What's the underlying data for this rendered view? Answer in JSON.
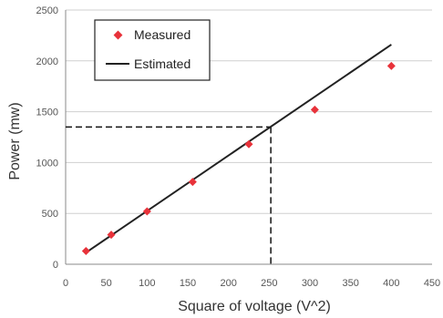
{
  "chart_data": {
    "type": "scatter",
    "title": "",
    "xlabel": "Square of voltage (V^2)",
    "ylabel": "Power (mw)",
    "xlim": [
      0,
      450
    ],
    "ylim": [
      0,
      2500
    ],
    "xticks": [
      0,
      50,
      100,
      150,
      200,
      250,
      300,
      350,
      400,
      450
    ],
    "yticks": [
      0,
      500,
      1000,
      1500,
      2000,
      2500
    ],
    "grid": "horizontal",
    "legend_position": "top-left",
    "series": [
      {
        "name": "Measured",
        "kind": "scatter",
        "marker": "diamond",
        "color": "#e8323a",
        "points": [
          {
            "x": 25,
            "y": 130
          },
          {
            "x": 56,
            "y": 290
          },
          {
            "x": 100,
            "y": 520
          },
          {
            "x": 156,
            "y": 810
          },
          {
            "x": 225,
            "y": 1180
          },
          {
            "x": 306,
            "y": 1520
          },
          {
            "x": 400,
            "y": 1950
          }
        ]
      },
      {
        "name": "Estimated",
        "kind": "line",
        "color": "#222222",
        "points": [
          {
            "x": 25,
            "y": 115
          },
          {
            "x": 400,
            "y": 2160
          }
        ]
      }
    ],
    "reference": {
      "x": 252,
      "y": 1350,
      "style": "dashed",
      "color": "#111111"
    }
  }
}
